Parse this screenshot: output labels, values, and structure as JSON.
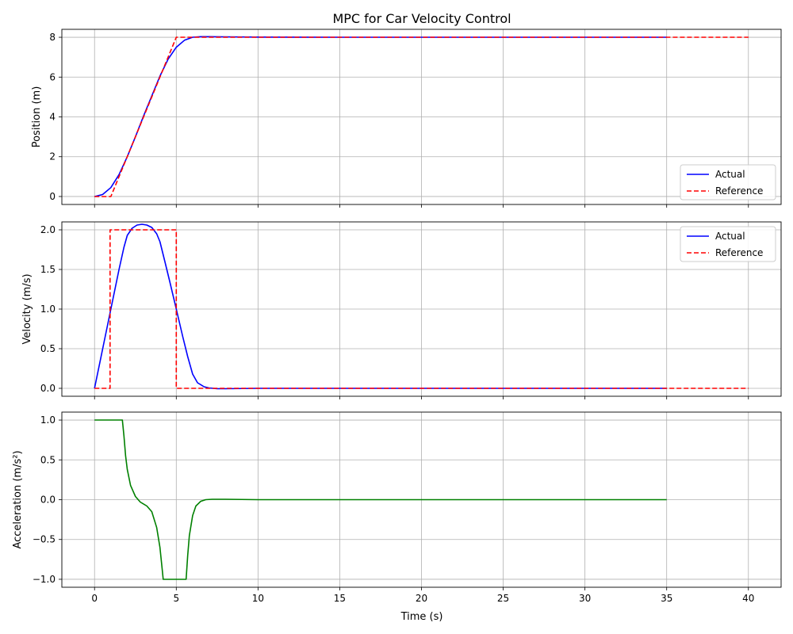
{
  "title": "MPC for Car Velocity Control",
  "xlabel": "Time (s)",
  "chart_data": [
    {
      "type": "line",
      "ylabel": "Position (m)",
      "xlim": [
        -2,
        42
      ],
      "ylim": [
        -0.4,
        8.4
      ],
      "xticks": [
        0,
        5,
        10,
        15,
        20,
        25,
        30,
        35,
        40
      ],
      "yticks": [
        0,
        2,
        4,
        6,
        8
      ],
      "ytick_labels": [
        "0",
        "2",
        "4",
        "6",
        "8"
      ],
      "grid": true,
      "legend": "lower-right",
      "series": [
        {
          "name": "Actual",
          "color": "#0000ff",
          "style": "solid",
          "x": [
            0,
            0.5,
            1.0,
            1.5,
            2.0,
            2.5,
            3.0,
            3.5,
            4.0,
            4.5,
            5.0,
            5.5,
            6.0,
            6.5,
            7.0,
            8.0,
            10.0,
            15.0,
            20.0,
            25.0,
            30.0,
            35.0
          ],
          "y": [
            0,
            0.1,
            0.45,
            1.1,
            2.0,
            3.0,
            4.05,
            5.05,
            6.05,
            6.9,
            7.5,
            7.85,
            8.0,
            8.03,
            8.03,
            8.02,
            8.01,
            8.0,
            8.0,
            8.0,
            8.0,
            8.0
          ]
        },
        {
          "name": "Reference",
          "color": "#ff0000",
          "style": "dashed",
          "x": [
            0,
            1.0,
            5.0,
            40.0
          ],
          "y": [
            0,
            0,
            8,
            8
          ]
        }
      ]
    },
    {
      "type": "line",
      "ylabel": "Velocity (m/s)",
      "xlim": [
        -2,
        42
      ],
      "ylim": [
        -0.1,
        2.1
      ],
      "xticks": [
        0,
        5,
        10,
        15,
        20,
        25,
        30,
        35,
        40
      ],
      "yticks": [
        0,
        0.5,
        1.0,
        1.5,
        2.0
      ],
      "ytick_labels": [
        "0.0",
        "0.5",
        "1.0",
        "1.5",
        "2.0"
      ],
      "grid": true,
      "legend": "upper-right",
      "series": [
        {
          "name": "Actual",
          "color": "#0000ff",
          "style": "solid",
          "x": [
            0,
            0.5,
            1.0,
            1.5,
            1.8,
            2.0,
            2.3,
            2.6,
            2.9,
            3.2,
            3.5,
            3.8,
            4.0,
            4.3,
            4.6,
            5.0,
            5.4,
            5.7,
            6.0,
            6.3,
            6.7,
            7.0,
            7.5,
            8.0,
            10.0,
            15.0,
            20.0,
            25.0,
            30.0,
            35.0
          ],
          "y": [
            0,
            0.5,
            1.0,
            1.5,
            1.78,
            1.93,
            2.02,
            2.06,
            2.07,
            2.06,
            2.03,
            1.95,
            1.85,
            1.6,
            1.35,
            1.0,
            0.65,
            0.4,
            0.18,
            0.07,
            0.02,
            0.005,
            -0.005,
            -0.005,
            0,
            0,
            0,
            0,
            0,
            0
          ]
        },
        {
          "name": "Reference",
          "color": "#ff0000",
          "style": "dashed",
          "x": [
            0,
            0.95,
            0.95,
            5.0,
            5.0,
            40.0
          ],
          "y": [
            0,
            0,
            2.0,
            2.0,
            0,
            0
          ]
        }
      ]
    },
    {
      "type": "line",
      "ylabel": "Acceleration (m/s²)",
      "xlim": [
        -2,
        42
      ],
      "ylim": [
        -1.1,
        1.1
      ],
      "xticks": [
        0,
        5,
        10,
        15,
        20,
        25,
        30,
        35,
        40
      ],
      "xtick_labels": [
        "0",
        "5",
        "10",
        "15",
        "20",
        "25",
        "30",
        "35",
        "40"
      ],
      "yticks": [
        -1.0,
        -0.5,
        0.0,
        0.5,
        1.0
      ],
      "ytick_labels": [
        "−1.0",
        "−0.5",
        "0.0",
        "0.5",
        "1.0"
      ],
      "grid": true,
      "series": [
        {
          "name": "",
          "color": "#008000",
          "style": "solid",
          "x": [
            0,
            1.7,
            1.8,
            1.9,
            2.0,
            2.2,
            2.5,
            2.8,
            3.2,
            3.5,
            3.8,
            4.0,
            4.15,
            4.2,
            5.6,
            5.7,
            5.8,
            6.0,
            6.2,
            6.5,
            6.8,
            7.2,
            8.0,
            10.0,
            15.0,
            20.0,
            25.0,
            30.0,
            35.0
          ],
          "y": [
            1.0,
            1.0,
            0.8,
            0.55,
            0.38,
            0.18,
            0.04,
            -0.03,
            -0.08,
            -0.15,
            -0.35,
            -0.6,
            -0.9,
            -1.0,
            -1.0,
            -0.7,
            -0.45,
            -0.2,
            -0.08,
            -0.02,
            0.0,
            0.005,
            0.005,
            0.0,
            0.0,
            0.0,
            0.0,
            0.0,
            0.0
          ]
        }
      ]
    }
  ]
}
